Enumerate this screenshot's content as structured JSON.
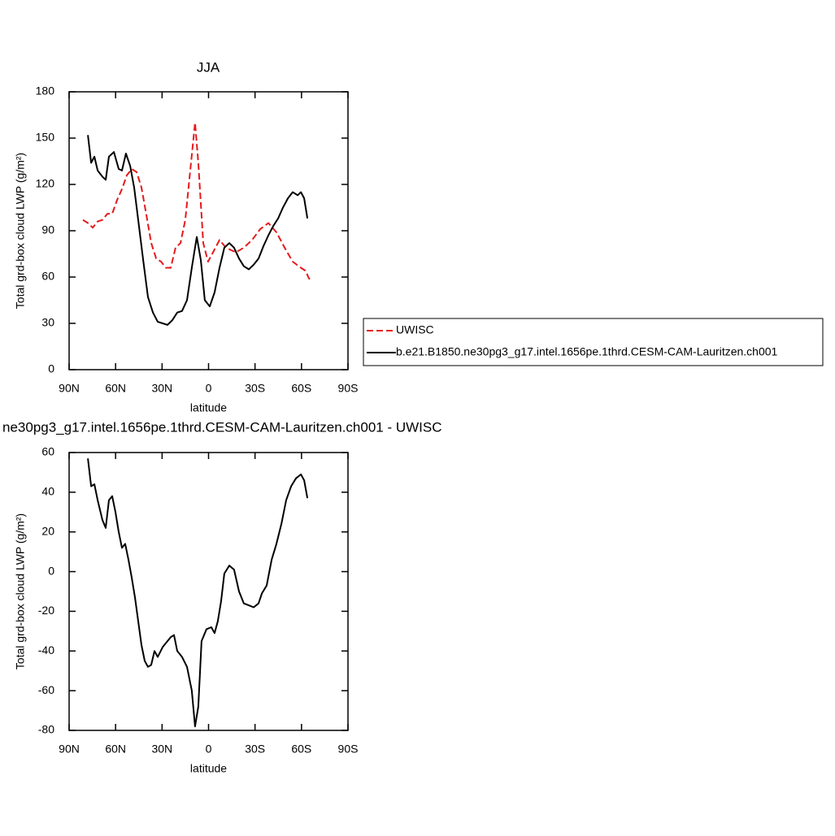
{
  "chart_data": [
    {
      "type": "line",
      "title": "JJA",
      "x_label": "latitude",
      "y_label": "Total grd-box cloud LWP (g/m²)",
      "xlim": [
        90,
        -90
      ],
      "xticks": [
        {
          "value": 90,
          "label": "90N"
        },
        {
          "value": 60,
          "label": "60N"
        },
        {
          "value": 30,
          "label": "30N"
        },
        0,
        {
          "value": -30,
          "label": "30S"
        },
        {
          "value": -60,
          "label": "60S"
        },
        {
          "value": -90,
          "label": "90S"
        }
      ],
      "ylim": [
        0,
        180
      ],
      "yticks": [
        0,
        30,
        60,
        90,
        120,
        150,
        180
      ],
      "legend": "outside-right",
      "series": [
        {
          "name": "UWISC",
          "color": "#e41a1c",
          "line_style": "dashed",
          "x": [
            81.1,
            77.9,
            74.8,
            71.6,
            68.5,
            65.3,
            62.2,
            59.0,
            55.9,
            52.7,
            49.6,
            46.4,
            43.3,
            40.1,
            37.0,
            33.8,
            30.7,
            27.5,
            24.4,
            21.3,
            18.1,
            15.0,
            11.8,
            8.7,
            6.6,
            3.4,
            0.3,
            -2.9,
            -7.1,
            -11.3,
            -17.6,
            -22.8,
            -28.1,
            -33.3,
            -38.6,
            -43.8,
            -49.1,
            -54.3,
            -59.6,
            -62.7,
            -64.8,
            -66.9
          ],
          "values": [
            97,
            95,
            92,
            96,
            97,
            101,
            101,
            110,
            117,
            126,
            130,
            128,
            118,
            100,
            82,
            72,
            70,
            66,
            66,
            79,
            82,
            97,
            129,
            160,
            134,
            82,
            70,
            76,
            84,
            79,
            76,
            79,
            84,
            91,
            95,
            89,
            79,
            70,
            66,
            64,
            59,
            58
          ]
        },
        {
          "name": "b.e21.B1850.ne30pg3_g17.intel.1656pe.1thrd.CESM-CAM-Lauritzen.ch001",
          "color": "#000000",
          "line_style": "solid",
          "x": [
            77.9,
            75.8,
            73.7,
            71.6,
            68.5,
            66.4,
            64.3,
            61.1,
            58.0,
            55.9,
            53.3,
            50.6,
            48.0,
            45.4,
            42.2,
            39.1,
            35.9,
            32.8,
            29.6,
            26.5,
            23.4,
            20.2,
            17.1,
            13.9,
            10.8,
            7.6,
            5.0,
            2.4,
            -0.8,
            -3.9,
            -7.1,
            -10.2,
            -13.4,
            -16.5,
            -19.7,
            -22.8,
            -26.0,
            -29.1,
            -32.3,
            -35.4,
            -38.6,
            -41.7,
            -44.9,
            -48.0,
            -51.2,
            -54.3,
            -57.5,
            -59.6,
            -61.7,
            -63.8
          ],
          "values": [
            152,
            134,
            138,
            129,
            125,
            123,
            138,
            141,
            130,
            129,
            140,
            132,
            118,
            97,
            71,
            47,
            37,
            31,
            30,
            29,
            32,
            37,
            38,
            45,
            66,
            86,
            71,
            45,
            41,
            50,
            66,
            79,
            82,
            79,
            72,
            67,
            65,
            68,
            72,
            80,
            87,
            93,
            98,
            105,
            111,
            115,
            113,
            115,
            111,
            98
          ]
        }
      ]
    },
    {
      "type": "line",
      "title": "ne30pg3_g17.intel.1656pe.1thrd.CESM-CAM-Lauritzen.ch001 - UWISC",
      "x_label": "latitude",
      "y_label": "Total grd-box cloud LWP (g/m²)",
      "xlim": [
        90,
        -90
      ],
      "xticks": [
        {
          "value": 90,
          "label": "90N"
        },
        {
          "value": 60,
          "label": "60N"
        },
        {
          "value": 30,
          "label": "30N"
        },
        0,
        {
          "value": -30,
          "label": "30S"
        },
        {
          "value": -60,
          "label": "60S"
        },
        {
          "value": -90,
          "label": "90S"
        }
      ],
      "ylim": [
        -80,
        60
      ],
      "yticks": [
        -80,
        -60,
        -40,
        -20,
        0,
        20,
        40,
        60
      ],
      "series": [
        {
          "color": "#000000",
          "line_style": "solid",
          "x": [
            77.9,
            75.8,
            73.7,
            71.6,
            68.5,
            66.4,
            64.3,
            62.2,
            60.1,
            58.0,
            55.9,
            53.8,
            51.7,
            49.6,
            47.5,
            45.4,
            43.3,
            41.2,
            39.1,
            37.0,
            34.9,
            32.8,
            29.6,
            26.5,
            24.4,
            22.3,
            20.2,
            17.1,
            13.9,
            10.8,
            8.7,
            6.6,
            4.5,
            1.3,
            -1.8,
            -3.9,
            -6.0,
            -8.1,
            -10.2,
            -13.4,
            -16.5,
            -19.7,
            -22.8,
            -26.0,
            -29.1,
            -32.3,
            -34.4,
            -37.5,
            -40.7,
            -43.8,
            -47.0,
            -50.1,
            -53.3,
            -56.4,
            -59.6,
            -61.7,
            -63.8
          ],
          "values": [
            57,
            43,
            44,
            36,
            26,
            22,
            36,
            38,
            30,
            20,
            12,
            14,
            6,
            -3,
            -13,
            -25,
            -37,
            -45,
            -48,
            -47,
            -40,
            -43,
            -38,
            -35,
            -33,
            -32,
            -40,
            -43,
            -48,
            -60,
            -78,
            -68,
            -35,
            -29,
            -28,
            -31,
            -25,
            -15,
            -1,
            3,
            1,
            -10,
            -16,
            -17,
            -18,
            -16,
            -11,
            -7,
            6,
            14,
            24,
            36,
            43,
            47,
            49,
            46,
            37
          ]
        }
      ]
    }
  ]
}
